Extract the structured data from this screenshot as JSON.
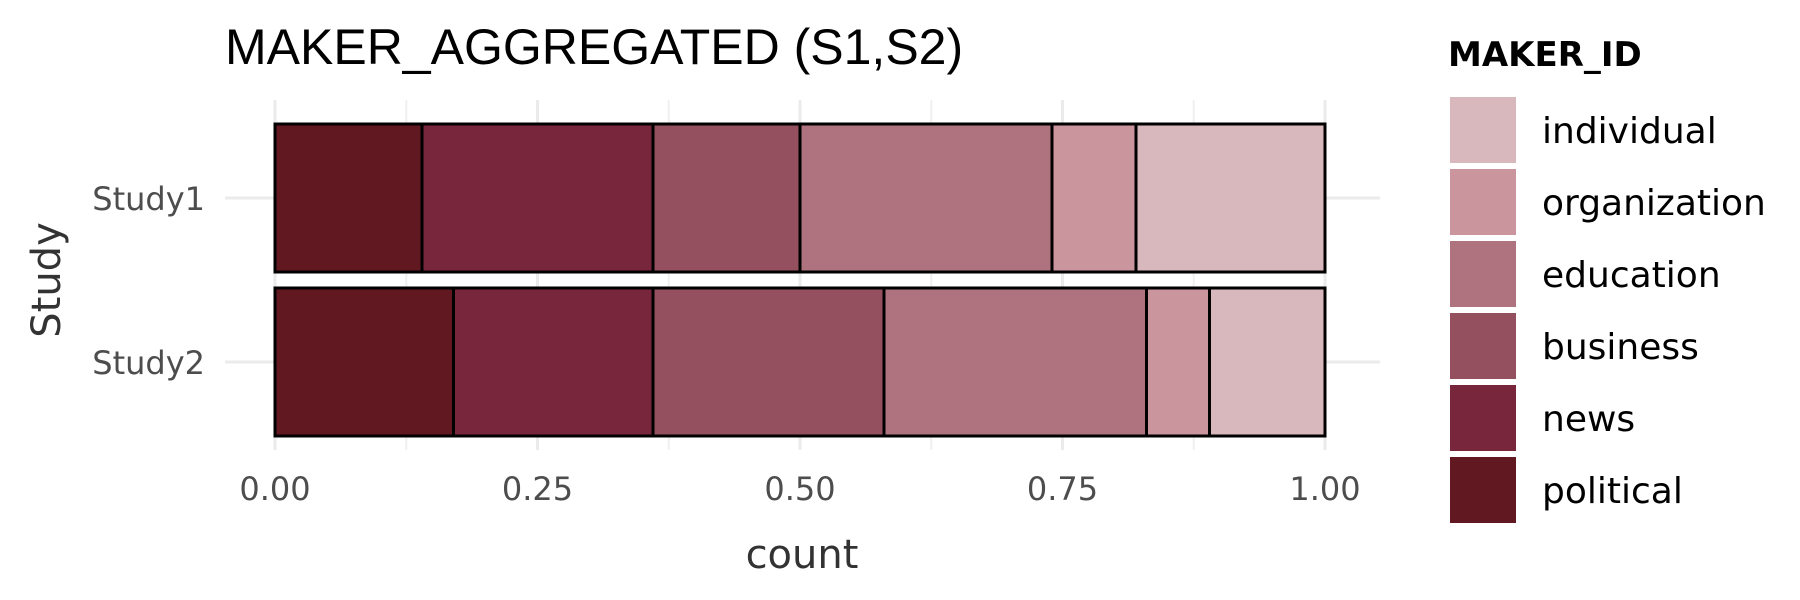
{
  "chart_data": {
    "type": "bar",
    "orientation": "horizontal",
    "stacked": true,
    "title": "MAKER_AGGREGATED (S1,S2)",
    "xlabel": "count",
    "ylabel": "Study",
    "xlim": [
      0,
      1
    ],
    "x_ticks": [
      "0.00",
      "0.25",
      "0.50",
      "0.75",
      "1.00"
    ],
    "categories": [
      "Study1",
      "Study2"
    ],
    "legend_title": "MAKER_ID",
    "legend_position": "right",
    "grid": true,
    "series": [
      {
        "name": "political",
        "color": "#621820",
        "values": [
          0.14,
          0.17
        ]
      },
      {
        "name": "news",
        "color": "#77263c",
        "values": [
          0.22,
          0.19
        ]
      },
      {
        "name": "business",
        "color": "#955060",
        "values": [
          0.14,
          0.22
        ]
      },
      {
        "name": "education",
        "color": "#ae737e",
        "values": [
          0.24,
          0.25
        ]
      },
      {
        "name": "organization",
        "color": "#cb959e",
        "values": [
          0.08,
          0.06
        ]
      },
      {
        "name": "individual",
        "color": "#d8b8bd",
        "values": [
          0.18,
          0.11
        ]
      }
    ]
  }
}
